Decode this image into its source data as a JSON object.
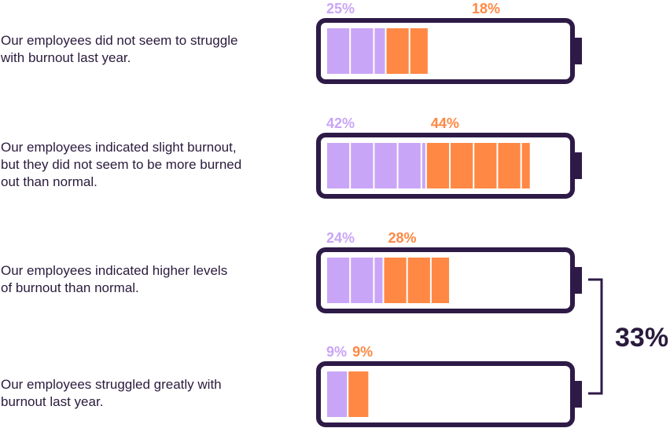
{
  "colors": {
    "lavender": "#c9a5f7",
    "orange": "#ff8844",
    "outline": "#2e1a47",
    "text": "#2a1b3d"
  },
  "chart_data": {
    "type": "bar",
    "categories": [
      "Our employees did not seem to struggle\nwith burnout last year.",
      "Our employees indicated slight burnout,\nbut they did not seem to be more burned\nout than normal.",
      "Our employees indicated higher levels\nof burnout than normal.",
      "Our employees struggled greatly with\nburnout last year."
    ],
    "series": [
      {
        "values": [
          25,
          42,
          24,
          9
        ],
        "labels": [
          "25%",
          "42%",
          "24%",
          "9%"
        ],
        "color": "#c9a5f7"
      },
      {
        "values": [
          18,
          44,
          28,
          9
        ],
        "labels": [
          "18%",
          "44%",
          "28%",
          "9%"
        ],
        "color": "#ff8844"
      }
    ],
    "bracket": {
      "spans_categories": [
        2,
        3
      ],
      "label": "33%"
    },
    "style": "battery"
  }
}
